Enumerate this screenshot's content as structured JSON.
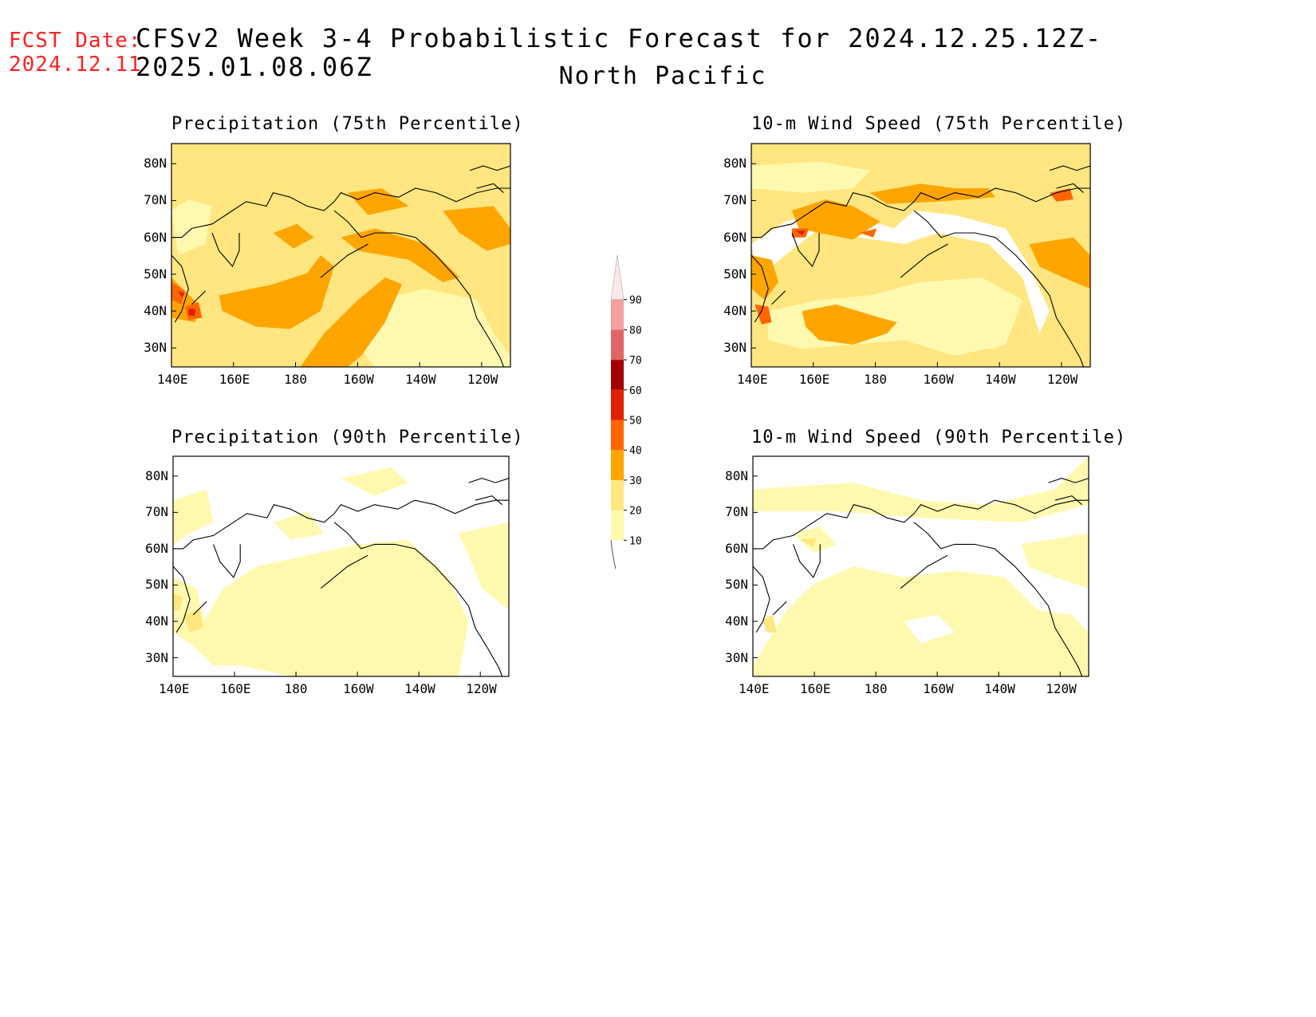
{
  "header": {
    "fcst_label": "FCST Date:",
    "fcst_date": "2024.12.11",
    "title": "CFSv2 Week 3-4 Probabilistic Forecast for 2024.12.25.12Z-2025.01.08.06Z",
    "region": "North Pacific"
  },
  "lon_ticks": [
    "140E",
    "160E",
    "180",
    "160W",
    "140W",
    "120W"
  ],
  "lat_ticks": [
    "80N",
    "70N",
    "60N",
    "50N",
    "40N",
    "30N"
  ],
  "panels": [
    {
      "id": "precip75",
      "title": "Precipitation (75th Percentile)"
    },
    {
      "id": "wind75",
      "title": "10-m Wind Speed (75th Percentile)"
    },
    {
      "id": "precip90",
      "title": "Precipitation (90th Percentile)"
    },
    {
      "id": "wind90",
      "title": "10-m Wind Speed (90th Percentile)"
    }
  ],
  "colorbar": {
    "levels": [
      "10",
      "20",
      "30",
      "40",
      "50",
      "60",
      "70",
      "80",
      "90"
    ],
    "colors": [
      "#fff9b0",
      "#ffe680",
      "#ffa500",
      "#ff6600",
      "#e02000",
      "#a50000",
      "#e06666",
      "#f4a0a0",
      "#fde8e8"
    ]
  }
}
